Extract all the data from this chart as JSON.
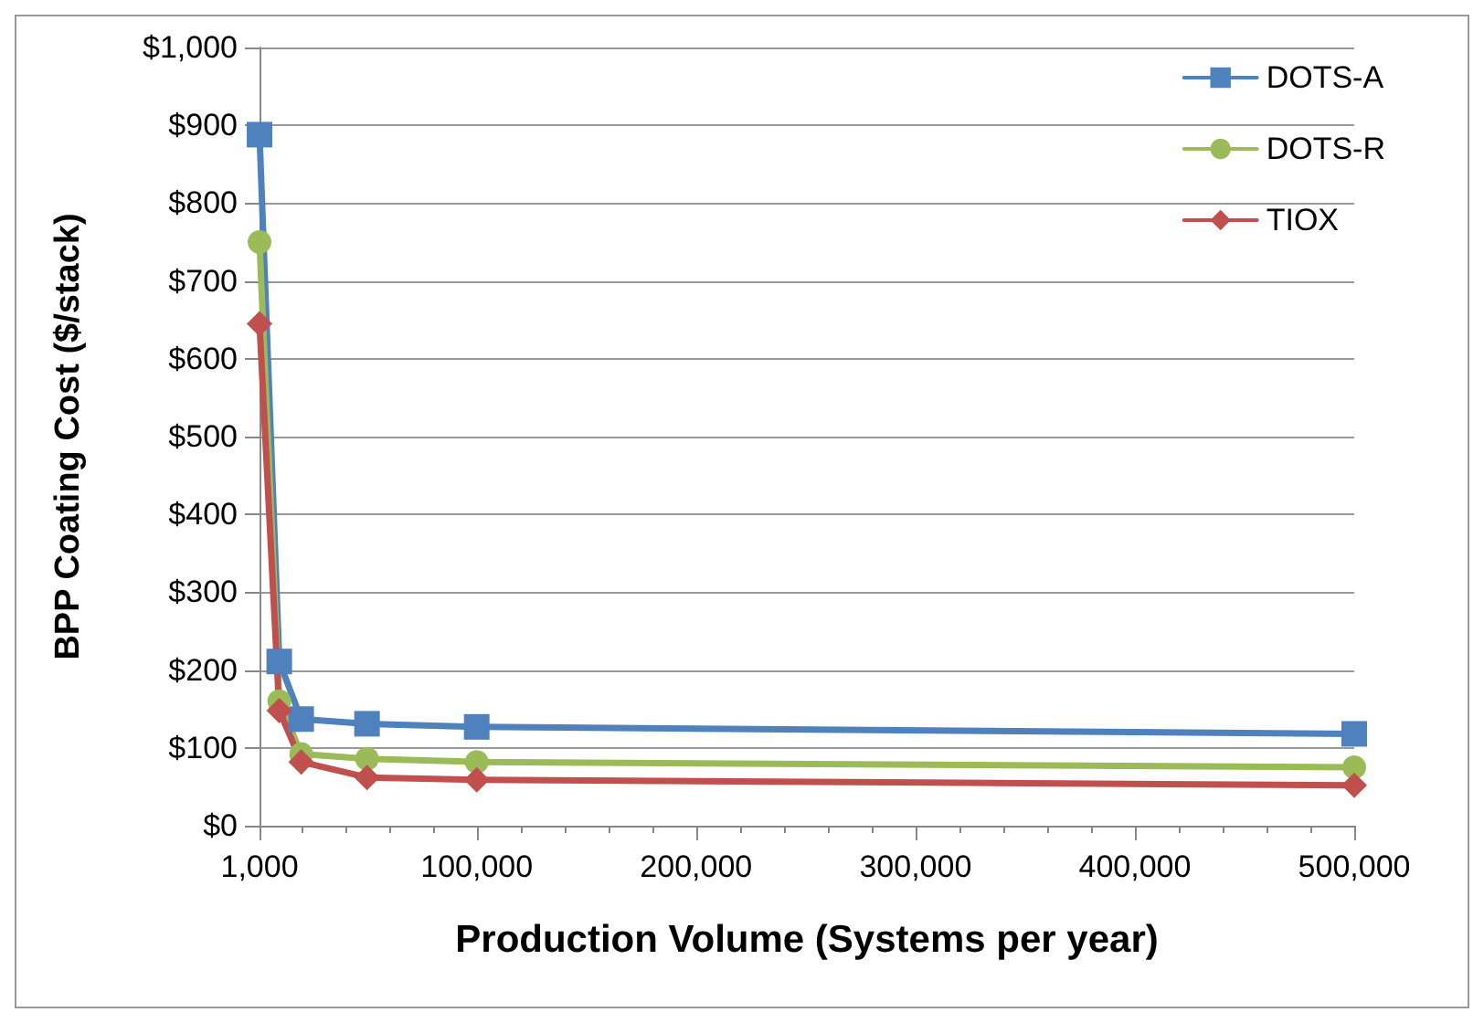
{
  "chart_data": {
    "type": "line",
    "xlabel": "Production Volume (Systems per year)",
    "ylabel": "BPP Coating Cost ($/stack)",
    "x": [
      1000,
      10000,
      20000,
      50000,
      100000,
      500000
    ],
    "series": [
      {
        "name": "DOTS-A",
        "color": "#4f81bd",
        "marker": "square",
        "values": [
          888,
          211,
          137,
          131,
          127,
          118
        ]
      },
      {
        "name": "DOTS-R",
        "color": "#9bbb59",
        "marker": "circle",
        "values": [
          750,
          160,
          92,
          86,
          82,
          75
        ]
      },
      {
        "name": "TIOX",
        "color": "#c0504d",
        "marker": "diamond",
        "values": [
          645,
          148,
          82,
          62,
          59,
          52
        ]
      }
    ],
    "xlim": [
      1000,
      500000
    ],
    "xticks": [
      {
        "value": 1000,
        "label": "1,000"
      },
      {
        "value": 100000,
        "label": "100,000"
      },
      {
        "value": 200000,
        "label": "200,000"
      },
      {
        "value": 300000,
        "label": "300,000"
      },
      {
        "value": 400000,
        "label": "400,000"
      },
      {
        "value": 500000,
        "label": "500,000"
      }
    ],
    "ylim": [
      0,
      1000
    ],
    "yticks": [
      {
        "value": 0,
        "label": "$0"
      },
      {
        "value": 100,
        "label": "$100"
      },
      {
        "value": 200,
        "label": "$200"
      },
      {
        "value": 300,
        "label": "$300"
      },
      {
        "value": 400,
        "label": "$400"
      },
      {
        "value": 500,
        "label": "$500"
      },
      {
        "value": 600,
        "label": "$600"
      },
      {
        "value": 700,
        "label": "$700"
      },
      {
        "value": 800,
        "label": "$800"
      },
      {
        "value": 900,
        "label": "$900"
      },
      {
        "value": 1000,
        "label": "$1,000"
      }
    ],
    "grid": "y",
    "legend": "top right"
  }
}
